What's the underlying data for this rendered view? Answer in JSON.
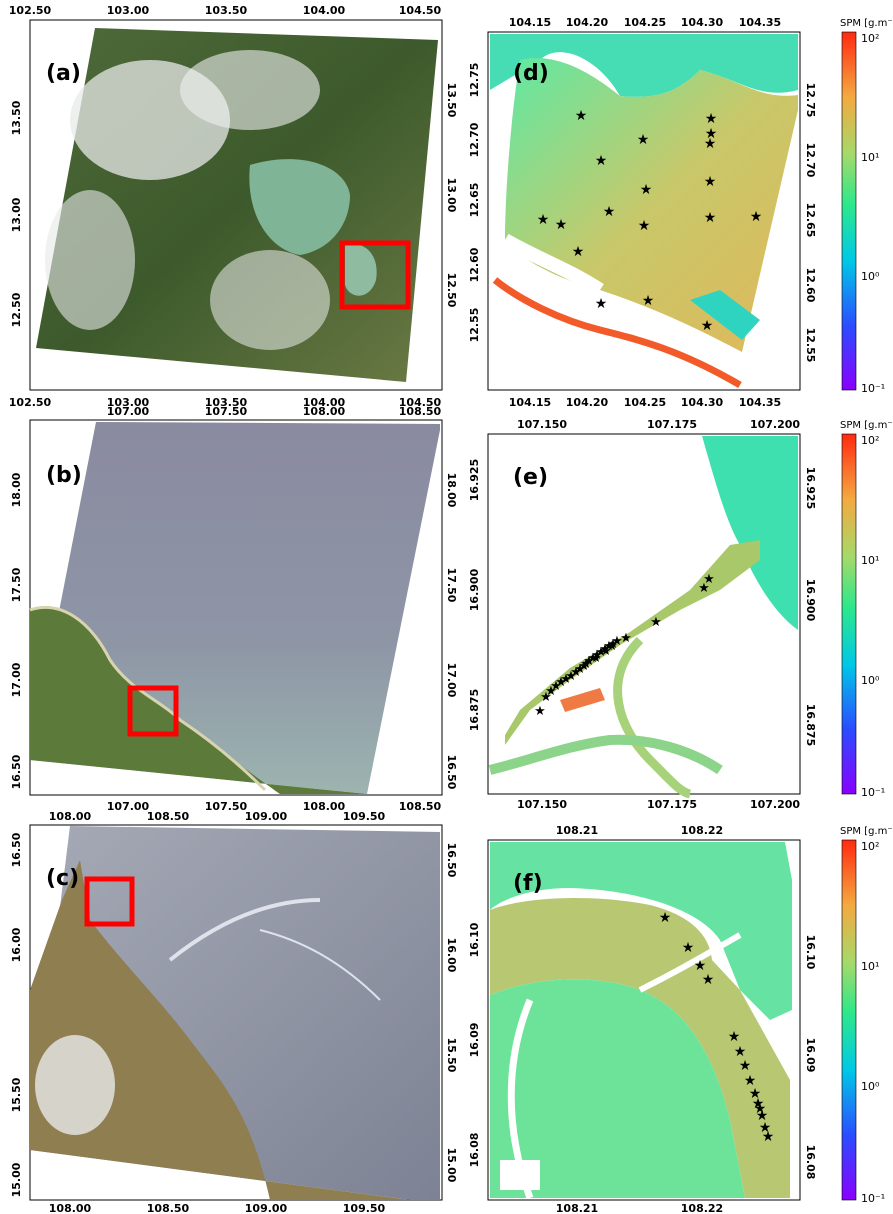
{
  "colorbar": {
    "title": "SPM [g.m⁻³]",
    "ticks": [
      "10²",
      "10¹",
      "10⁰",
      "10⁻¹"
    ],
    "scale": "log",
    "range": [
      0.1,
      100
    ],
    "colors": [
      "#8a00ff",
      "#2a4dff",
      "#00c8e6",
      "#2ee88a",
      "#a6d96a",
      "#f4a940",
      "#ff2a10"
    ]
  },
  "panels_left": [
    {
      "label": "(a)",
      "x_ticks": [
        "102.50",
        "103.00",
        "103.50",
        "104.00",
        "104.50"
      ],
      "y_ticks_left": [
        "13.50",
        "13.00",
        "12.50"
      ],
      "y_ticks_right": [
        "13.50",
        "13.00",
        "12.50"
      ]
    },
    {
      "label": "(b)",
      "x_ticks_top": [
        "107.00",
        "107.50",
        "108.00",
        "108.50"
      ],
      "x_ticks_bottom": [
        "107.00",
        "107.50",
        "108.00",
        "108.50"
      ],
      "y_ticks_left": [
        "18.00",
        "17.50",
        "17.00",
        "16.50"
      ],
      "y_ticks_right": [
        "18.00",
        "17.50",
        "17.00",
        "16.50"
      ]
    },
    {
      "label": "(c)",
      "x_ticks_top": [
        "108.00",
        "108.50",
        "109.00",
        "109.50"
      ],
      "x_ticks_bottom": [
        "108.00",
        "108.50",
        "109.00",
        "109.50"
      ],
      "y_ticks_left": [
        "16.50",
        "16.00",
        "15.50",
        "15.00"
      ],
      "y_ticks_right": [
        "16.50",
        "16.00",
        "15.50",
        "15.00"
      ]
    }
  ],
  "panels_right": [
    {
      "label": "(d)",
      "x_ticks": [
        "104.15",
        "104.20",
        "104.25",
        "104.30",
        "104.35"
      ],
      "y_ticks_left": [
        "12.75",
        "12.70",
        "12.65",
        "12.60",
        "12.55"
      ],
      "y_ticks_right": [
        "12.75",
        "12.70",
        "12.65",
        "12.60",
        "12.55"
      ],
      "stations_count": 18
    },
    {
      "label": "(e)",
      "x_ticks": [
        "107.150",
        "107.175",
        "107.200"
      ],
      "y_ticks_left": [
        "16.925",
        "16.900",
        "16.875"
      ],
      "y_ticks_right": [
        "16.925",
        "16.900",
        "16.875"
      ],
      "stations_count": 26
    },
    {
      "label": "(f)",
      "x_ticks": [
        "108.21",
        "108.22"
      ],
      "y_ticks_left": [
        "16.10",
        "16.09",
        "16.08"
      ],
      "y_ticks_right": [
        "16.10",
        "16.09",
        "16.08"
      ],
      "stations_count": 14
    }
  ]
}
